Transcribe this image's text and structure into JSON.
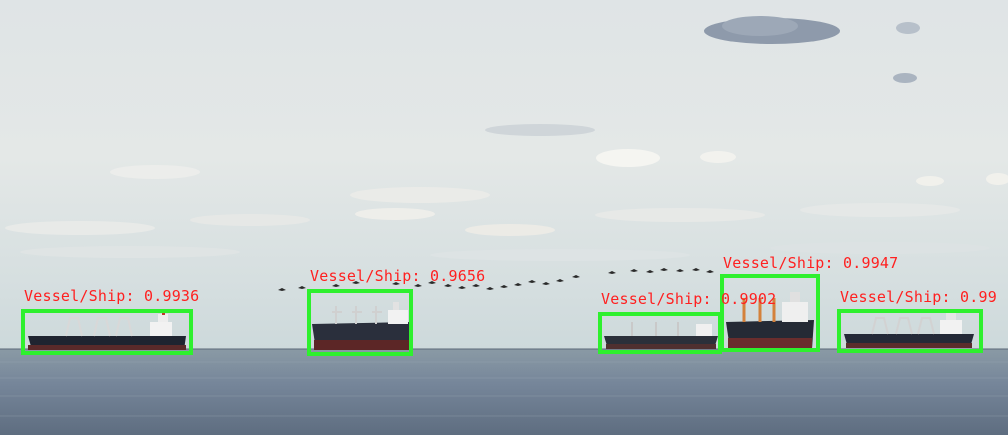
{
  "detection_color": "#2ef02e",
  "label_color": "#ff2020",
  "detections": [
    {
      "label": "Vessel/Ship: 0.9936"
    },
    {
      "label": "Vessel/Ship: 0.9656"
    },
    {
      "label": "Vessel/Ship: 0.9947"
    },
    {
      "label": "Vessel/Ship: 0.9902"
    },
    {
      "label": "Vessel/Ship: 0.99"
    }
  ]
}
